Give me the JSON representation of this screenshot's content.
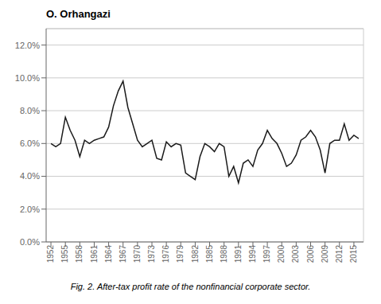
{
  "chart_data": {
    "type": "line",
    "title": "O. Orhangazi",
    "caption": "Fig. 2.  After-tax profit rate of the nonfinancial corporate sector.",
    "x": [
      1952,
      1953,
      1954,
      1955,
      1956,
      1957,
      1958,
      1959,
      1960,
      1961,
      1962,
      1963,
      1964,
      1965,
      1966,
      1967,
      1968,
      1969,
      1970,
      1971,
      1972,
      1973,
      1974,
      1975,
      1976,
      1977,
      1978,
      1979,
      1980,
      1981,
      1982,
      1983,
      1984,
      1985,
      1986,
      1987,
      1988,
      1989,
      1990,
      1991,
      1992,
      1993,
      1994,
      1995,
      1996,
      1997,
      1998,
      1999,
      2000,
      2001,
      2002,
      2003,
      2004,
      2005,
      2006,
      2007,
      2008,
      2009,
      2010,
      2011,
      2012,
      2013,
      2014,
      2015,
      2016
    ],
    "values": [
      0.06,
      0.058,
      0.06,
      0.076,
      0.068,
      0.062,
      0.052,
      0.062,
      0.06,
      0.062,
      0.063,
      0.064,
      0.07,
      0.083,
      0.092,
      0.098,
      0.082,
      0.072,
      0.062,
      0.058,
      0.06,
      0.062,
      0.051,
      0.05,
      0.061,
      0.058,
      0.06,
      0.059,
      0.042,
      0.04,
      0.038,
      0.052,
      0.06,
      0.058,
      0.055,
      0.06,
      0.058,
      0.04,
      0.046,
      0.036,
      0.048,
      0.05,
      0.046,
      0.056,
      0.06,
      0.068,
      0.063,
      0.06,
      0.054,
      0.046,
      0.048,
      0.053,
      0.062,
      0.064,
      0.068,
      0.064,
      0.056,
      0.042,
      0.06,
      0.062,
      0.062,
      0.072,
      0.062,
      0.065,
      0.063
    ],
    "color": "#1a1a1a",
    "xlim": [
      1951,
      2017
    ],
    "xticks": [
      1952,
      1955,
      1958,
      1961,
      1964,
      1967,
      1970,
      1973,
      1976,
      1979,
      1982,
      1985,
      1988,
      1991,
      1994,
      1997,
      2000,
      2003,
      2006,
      2009,
      2012,
      2015
    ],
    "ylim": [
      0.0,
      0.13
    ],
    "yticks": [
      {
        "value": 0.0,
        "label": "0.0%"
      },
      {
        "value": 0.02,
        "label": "2.0%"
      },
      {
        "value": 0.04,
        "label": "4.0%"
      },
      {
        "value": 0.06,
        "label": "6.0%"
      },
      {
        "value": 0.08,
        "label": "8.0%"
      },
      {
        "value": 0.1,
        "label": "10.0%"
      },
      {
        "value": 0.12,
        "label": "12.0%"
      }
    ],
    "grid": true
  }
}
